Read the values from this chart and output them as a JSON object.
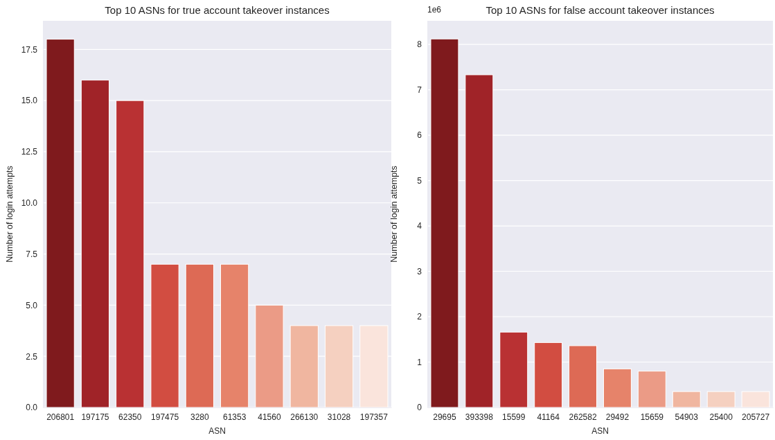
{
  "chart_data": [
    {
      "type": "bar",
      "title": "Top 10 ASNs for true account takeover instances",
      "xlabel": "ASN",
      "ylabel": "Number of login attempts",
      "categories": [
        "206801",
        "197175",
        "62350",
        "197475",
        "3280",
        "61353",
        "41560",
        "266130",
        "31028",
        "197357"
      ],
      "values": [
        18,
        16,
        15,
        7,
        7,
        7,
        5,
        4,
        4,
        4
      ],
      "colors": [
        "#7f1a1d",
        "#a02328",
        "#b93133",
        "#d24d41",
        "#dd6a55",
        "#e6836a",
        "#eb9b86",
        "#f0b6a0",
        "#f5d0c0",
        "#fae4dc"
      ],
      "ylim": [
        0,
        18.9
      ],
      "yticks": [
        {
          "value": 0,
          "label": "0.0"
        },
        2.5,
        {
          "value": 5,
          "label": "5.0"
        },
        7.5,
        {
          "value": 10,
          "label": "10.0"
        },
        12.5,
        {
          "value": 15,
          "label": "15.0"
        },
        17.5
      ],
      "grid": "y"
    },
    {
      "type": "bar",
      "title": "Top 10 ASNs for false account takeover instances",
      "xlabel": "ASN",
      "ylabel": "Number of login attempts",
      "annotations": [
        "1e6"
      ],
      "categories": [
        "29695",
        "393398",
        "15599",
        "41164",
        "262582",
        "29492",
        "15659",
        "54903",
        "25400",
        "205727"
      ],
      "values": [
        8.12,
        7.33,
        1.66,
        1.43,
        1.36,
        0.85,
        0.8,
        0.35,
        0.35,
        0.35
      ],
      "colors": [
        "#7f1a1d",
        "#a02328",
        "#b93133",
        "#d24d41",
        "#dd6a55",
        "#e6836a",
        "#eb9b86",
        "#f0b6a0",
        "#f5d0c0",
        "#fae4dc"
      ],
      "ylim": [
        0,
        8.52
      ],
      "yticks": [
        0,
        1,
        2,
        3,
        4,
        5,
        6,
        7,
        8
      ],
      "grid": "y"
    }
  ]
}
